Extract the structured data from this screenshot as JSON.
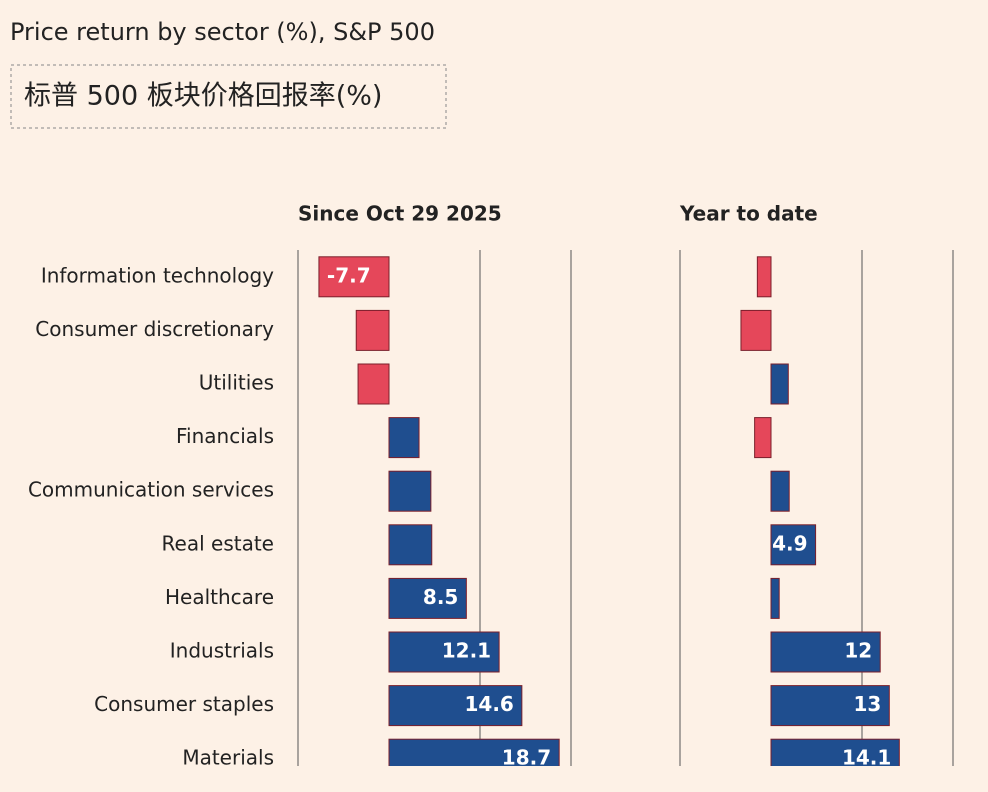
{
  "chart_data": {
    "type": "bar",
    "orientation": "horizontal",
    "title": "Price return by sector (%), S&P 500",
    "subtitle": "标普 500 板块价格回报率(%)",
    "categories": [
      "Information technology",
      "Consumer discretionary",
      "Utilities",
      "Financials",
      "Communication services",
      "Real estate",
      "Healthcare",
      "Industrials",
      "Consumer staples",
      "Materials"
    ],
    "positive_color": "#1f4e8f",
    "negative_color": "#e5475a",
    "xlim": [
      -10,
      20
    ],
    "xticks": [
      -10,
      10,
      20
    ],
    "tick_labels": false,
    "grid": true,
    "series": [
      {
        "name": "Since Oct 29 2025",
        "values": [
          -7.7,
          -3.6,
          -3.4,
          3.3,
          4.6,
          4.7,
          8.5,
          12.1,
          14.6,
          18.7
        ],
        "value_labels": [
          "-7.7",
          null,
          null,
          null,
          null,
          null,
          "8.5",
          "12.1",
          "14.6",
          "18.7"
        ]
      },
      {
        "name": "Year to date",
        "values": [
          -1.5,
          -3.3,
          1.9,
          -1.8,
          2.0,
          4.9,
          0.9,
          12,
          13,
          14.1
        ],
        "value_labels": [
          null,
          null,
          null,
          null,
          null,
          "4.9",
          null,
          "12",
          "13",
          "14.1"
        ]
      }
    ]
  }
}
